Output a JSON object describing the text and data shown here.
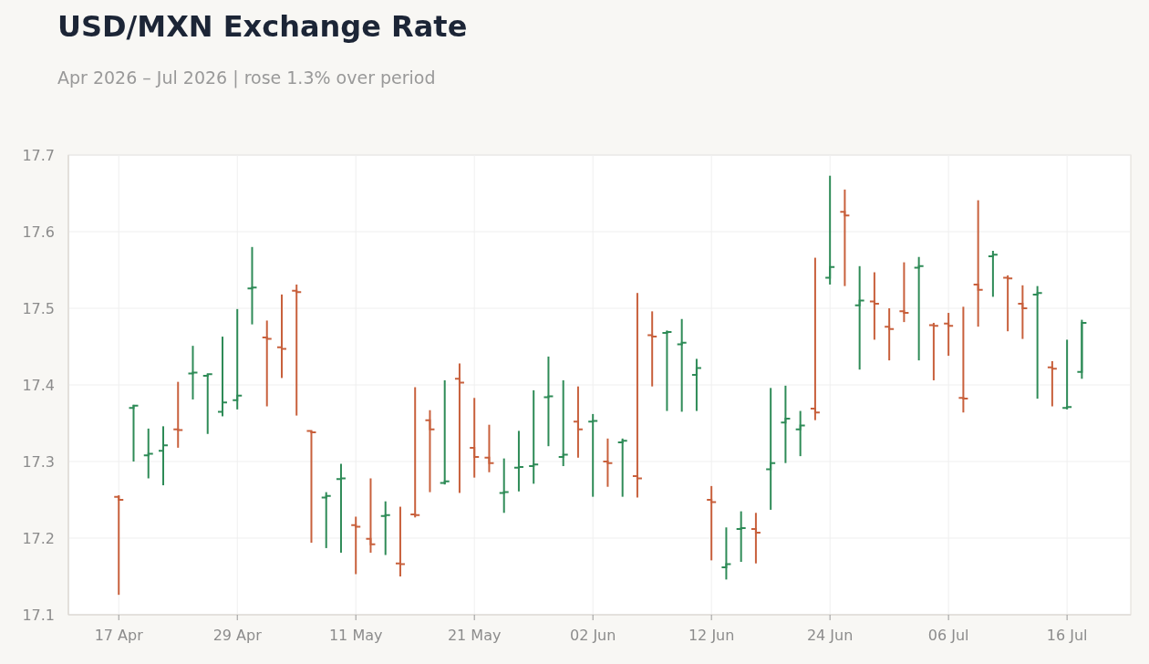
{
  "chart_data": {
    "type": "candlestick",
    "title": "USD/MXN Exchange Rate",
    "subtitle": "Apr 2026 – Jul 2026 | rose 1.3% over period",
    "categories": [
      "17 Apr",
      null,
      null,
      null,
      null,
      null,
      null,
      null,
      "29 Apr",
      null,
      null,
      null,
      null,
      null,
      null,
      null,
      "11 May",
      null,
      null,
      null,
      null,
      null,
      null,
      null,
      "21 May",
      null,
      null,
      null,
      null,
      null,
      null,
      null,
      "02 Jun",
      null,
      null,
      null,
      null,
      null,
      null,
      null,
      "12 Jun",
      null,
      null,
      null,
      null,
      null,
      null,
      null,
      "24 Jun",
      null,
      null,
      null,
      null,
      null,
      null,
      null,
      "06 Jul",
      null,
      null,
      null,
      null,
      null,
      null,
      null,
      "16 Jul",
      null
    ],
    "ohlc": [
      [
        17.254,
        17.256,
        17.126,
        17.25
      ],
      [
        17.37,
        17.374,
        17.3,
        17.373
      ],
      [
        17.308,
        17.343,
        17.278,
        17.31
      ],
      [
        17.314,
        17.346,
        17.269,
        17.321
      ],
      [
        17.342,
        17.404,
        17.318,
        17.341
      ],
      [
        17.415,
        17.451,
        17.381,
        17.416
      ],
      [
        17.412,
        17.414,
        17.336,
        17.414
      ],
      [
        17.365,
        17.463,
        17.359,
        17.377
      ],
      [
        17.38,
        17.499,
        17.368,
        17.386
      ],
      [
        17.526,
        17.58,
        17.479,
        17.527
      ],
      [
        17.462,
        17.484,
        17.372,
        17.46
      ],
      [
        17.449,
        17.518,
        17.409,
        17.447
      ],
      [
        17.523,
        17.531,
        17.36,
        17.521
      ],
      [
        17.34,
        17.34,
        17.194,
        17.338
      ],
      [
        17.253,
        17.26,
        17.187,
        17.255
      ],
      [
        17.277,
        17.297,
        17.181,
        17.278
      ],
      [
        17.217,
        17.228,
        17.153,
        17.215
      ],
      [
        17.199,
        17.278,
        17.181,
        17.192
      ],
      [
        17.229,
        17.248,
        17.178,
        17.23
      ],
      [
        17.167,
        17.241,
        17.15,
        17.166
      ],
      [
        17.231,
        17.397,
        17.227,
        17.23
      ],
      [
        17.354,
        17.367,
        17.26,
        17.342
      ],
      [
        17.272,
        17.406,
        17.27,
        17.274
      ],
      [
        17.408,
        17.428,
        17.259,
        17.403
      ],
      [
        17.318,
        17.383,
        17.279,
        17.306
      ],
      [
        17.305,
        17.348,
        17.286,
        17.298
      ],
      [
        17.259,
        17.304,
        17.233,
        17.26
      ],
      [
        17.292,
        17.34,
        17.261,
        17.293
      ],
      [
        17.294,
        17.393,
        17.271,
        17.296
      ],
      [
        17.384,
        17.437,
        17.32,
        17.385
      ],
      [
        17.306,
        17.406,
        17.294,
        17.309
      ],
      [
        17.352,
        17.398,
        17.305,
        17.342
      ],
      [
        17.352,
        17.362,
        17.254,
        17.353
      ],
      [
        17.3,
        17.33,
        17.267,
        17.298
      ],
      [
        17.325,
        17.33,
        17.254,
        17.327
      ],
      [
        17.281,
        17.52,
        17.253,
        17.278
      ],
      [
        17.465,
        17.496,
        17.398,
        17.463
      ],
      [
        17.468,
        17.471,
        17.366,
        17.469
      ],
      [
        17.453,
        17.486,
        17.365,
        17.455
      ],
      [
        17.413,
        17.434,
        17.366,
        17.422
      ],
      [
        17.25,
        17.268,
        17.171,
        17.247
      ],
      [
        17.162,
        17.214,
        17.146,
        17.166
      ],
      [
        17.212,
        17.235,
        17.169,
        17.213
      ],
      [
        17.212,
        17.233,
        17.167,
        17.207
      ],
      [
        17.29,
        17.396,
        17.237,
        17.298
      ],
      [
        17.351,
        17.399,
        17.298,
        17.356
      ],
      [
        17.342,
        17.366,
        17.307,
        17.347
      ],
      [
        17.369,
        17.566,
        17.354,
        17.364
      ],
      [
        17.54,
        17.673,
        17.531,
        17.554
      ],
      [
        17.626,
        17.655,
        17.529,
        17.621
      ],
      [
        17.504,
        17.555,
        17.42,
        17.51
      ],
      [
        17.509,
        17.547,
        17.459,
        17.506
      ],
      [
        17.476,
        17.5,
        17.432,
        17.473
      ],
      [
        17.496,
        17.56,
        17.482,
        17.494
      ],
      [
        17.553,
        17.567,
        17.432,
        17.555
      ],
      [
        17.478,
        17.481,
        17.406,
        17.477
      ],
      [
        17.48,
        17.494,
        17.438,
        17.477
      ],
      [
        17.383,
        17.502,
        17.364,
        17.382
      ],
      [
        17.531,
        17.641,
        17.476,
        17.524
      ],
      [
        17.568,
        17.575,
        17.515,
        17.57
      ],
      [
        17.54,
        17.543,
        17.47,
        17.539
      ],
      [
        17.506,
        17.53,
        17.46,
        17.5
      ],
      [
        17.518,
        17.529,
        17.382,
        17.52
      ],
      [
        17.423,
        17.431,
        17.372,
        17.421
      ],
      [
        17.37,
        17.459,
        17.368,
        17.371
      ],
      [
        17.417,
        17.485,
        17.408,
        17.481
      ]
    ],
    "colors": [
      "#c8603c",
      "#2e8b57",
      "#2e8b57",
      "#2e8b57",
      "#c8603c",
      "#2e8b57",
      "#2e8b57",
      "#2e8b57",
      "#2e8b57",
      "#2e8b57",
      "#c8603c",
      "#c8603c",
      "#c8603c",
      "#c8603c",
      "#2e8b57",
      "#2e8b57",
      "#c8603c",
      "#c8603c",
      "#2e8b57",
      "#c8603c",
      "#c8603c",
      "#c8603c",
      "#2e8b57",
      "#c8603c",
      "#c8603c",
      "#c8603c",
      "#2e8b57",
      "#2e8b57",
      "#2e8b57",
      "#2e8b57",
      "#2e8b57",
      "#c8603c",
      "#2e8b57",
      "#c8603c",
      "#2e8b57",
      "#c8603c",
      "#c8603c",
      "#2e8b57",
      "#2e8b57",
      "#2e8b57",
      "#c8603c",
      "#2e8b57",
      "#2e8b57",
      "#c8603c",
      "#2e8b57",
      "#2e8b57",
      "#2e8b57",
      "#c8603c",
      "#2e8b57",
      "#c8603c",
      "#2e8b57",
      "#c8603c",
      "#c8603c",
      "#c8603c",
      "#2e8b57",
      "#c8603c",
      "#c8603c",
      "#c8603c",
      "#c8603c",
      "#2e8b57",
      "#c8603c",
      "#c8603c",
      "#2e8b57",
      "#c8603c",
      "#2e8b57",
      "#2e8b57"
    ],
    "ylim": [
      17.1,
      17.7
    ],
    "yticks": [
      17.1,
      17.2,
      17.3,
      17.4,
      17.5,
      17.6,
      17.7
    ],
    "grid": true
  }
}
